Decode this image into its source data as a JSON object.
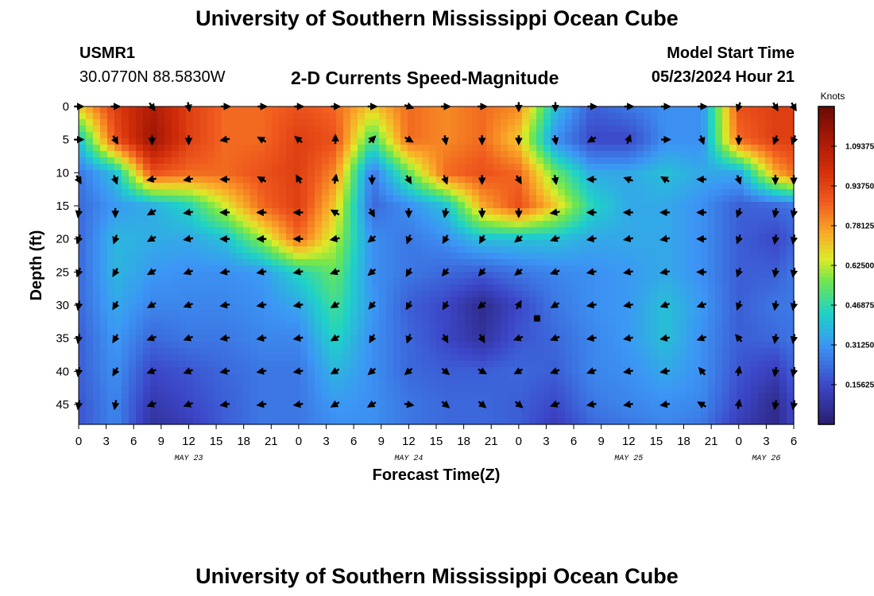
{
  "header": {
    "title": "University of Southern Mississippi Ocean Cube",
    "station_id": "USMR1",
    "coordinates": "30.0770N  88.5830W",
    "plot_title": "2-D Currents Speed-Magnitude",
    "model_start_label": "Model Start Time",
    "model_start_value": "05/23/2024 Hour 21"
  },
  "footer": {
    "title": "University of Southern Mississippi Ocean Cube"
  },
  "chart_data": {
    "type": "heatmap",
    "title": "2-D Currents Speed-Magnitude",
    "xlabel": "Forecast Time(Z)",
    "ylabel": "Depth (ft)",
    "x_ticks": [
      "0",
      "3",
      "6",
      "9",
      "12",
      "15",
      "18",
      "21",
      "0",
      "3",
      "6",
      "9",
      "12",
      "15",
      "18",
      "21",
      "0",
      "3",
      "6",
      "9",
      "12",
      "15",
      "18",
      "21",
      "0",
      "3",
      "6"
    ],
    "x_hours": [
      0,
      3,
      6,
      9,
      12,
      15,
      18,
      21,
      24,
      27,
      30,
      33,
      36,
      39,
      42,
      45,
      48,
      51,
      54,
      57,
      60,
      63,
      66,
      69,
      72,
      75,
      78
    ],
    "xlim_hours": [
      0,
      78
    ],
    "date_labels": [
      {
        "label": "MAY 23",
        "hour": 12
      },
      {
        "label": "MAY 24",
        "hour": 36
      },
      {
        "label": "MAY 25",
        "hour": 60
      },
      {
        "label": "MAY 26",
        "hour": 75
      }
    ],
    "y_ticks": [
      0,
      5,
      10,
      15,
      20,
      25,
      30,
      35,
      40,
      45
    ],
    "ylim": [
      0,
      48
    ],
    "colorbar": {
      "label": "Knots",
      "range": [
        0,
        1.25
      ],
      "tick_values": [
        0.15625,
        0.3125,
        0.46875,
        0.625,
        0.78125,
        0.9375,
        1.09375
      ],
      "tick_labels": [
        "0.15625",
        "0.31250",
        "0.46875",
        "0.62500",
        "0.78125",
        "0.93750",
        "1.09375"
      ]
    },
    "field_time_hours": [
      0,
      4,
      8,
      12,
      16,
      20,
      24,
      28,
      32,
      36,
      40,
      44,
      48,
      52,
      56,
      60,
      64,
      68,
      72,
      76,
      78
    ],
    "field_depth_ft": [
      0,
      5,
      10,
      15,
      20,
      25,
      30,
      35,
      40,
      45,
      48
    ],
    "speed_knots": [
      [
        0.7,
        0.95,
        1.1,
        0.95,
        0.85,
        0.85,
        0.9,
        0.85,
        0.7,
        0.85,
        0.8,
        0.85,
        0.8,
        0.4,
        0.2,
        0.25,
        0.3,
        0.3,
        0.9,
        0.95,
        0.95
      ],
      [
        0.4,
        0.9,
        1.15,
        0.95,
        0.85,
        0.85,
        0.95,
        0.9,
        0.5,
        0.85,
        0.8,
        0.85,
        0.7,
        0.3,
        0.15,
        0.15,
        0.3,
        0.3,
        0.85,
        0.95,
        0.95
      ],
      [
        0.25,
        0.4,
        0.9,
        0.85,
        0.85,
        0.9,
        0.95,
        0.8,
        0.25,
        0.55,
        0.85,
        0.9,
        0.85,
        0.55,
        0.35,
        0.35,
        0.4,
        0.35,
        0.35,
        0.75,
        0.85
      ],
      [
        0.22,
        0.32,
        0.36,
        0.45,
        0.65,
        0.85,
        0.95,
        0.7,
        0.22,
        0.3,
        0.4,
        0.75,
        0.9,
        0.7,
        0.45,
        0.35,
        0.35,
        0.3,
        0.2,
        0.22,
        0.25
      ],
      [
        0.22,
        0.38,
        0.36,
        0.35,
        0.4,
        0.6,
        0.85,
        0.62,
        0.3,
        0.25,
        0.3,
        0.4,
        0.4,
        0.4,
        0.35,
        0.35,
        0.35,
        0.3,
        0.2,
        0.15,
        0.2
      ],
      [
        0.22,
        0.38,
        0.32,
        0.3,
        0.3,
        0.32,
        0.45,
        0.55,
        0.3,
        0.25,
        0.22,
        0.2,
        0.25,
        0.28,
        0.3,
        0.32,
        0.35,
        0.3,
        0.2,
        0.2,
        0.25
      ],
      [
        0.22,
        0.35,
        0.28,
        0.28,
        0.28,
        0.3,
        0.35,
        0.5,
        0.32,
        0.2,
        0.15,
        0.05,
        0.15,
        0.25,
        0.3,
        0.32,
        0.4,
        0.32,
        0.2,
        0.25,
        0.25
      ],
      [
        0.2,
        0.32,
        0.22,
        0.25,
        0.25,
        0.28,
        0.28,
        0.45,
        0.3,
        0.22,
        0.15,
        0.08,
        0.18,
        0.22,
        0.28,
        0.32,
        0.4,
        0.3,
        0.2,
        0.22,
        0.25
      ],
      [
        0.2,
        0.3,
        0.15,
        0.18,
        0.22,
        0.25,
        0.25,
        0.38,
        0.3,
        0.22,
        0.2,
        0.2,
        0.22,
        0.2,
        0.28,
        0.3,
        0.35,
        0.3,
        0.18,
        0.12,
        0.2
      ],
      [
        0.18,
        0.28,
        0.1,
        0.15,
        0.2,
        0.25,
        0.25,
        0.32,
        0.3,
        0.25,
        0.22,
        0.22,
        0.2,
        0.15,
        0.25,
        0.28,
        0.3,
        0.28,
        0.15,
        0.05,
        0.15
      ],
      [
        0.18,
        0.28,
        0.08,
        0.12,
        0.2,
        0.25,
        0.25,
        0.3,
        0.3,
        0.25,
        0.22,
        0.22,
        0.2,
        0.12,
        0.22,
        0.25,
        0.28,
        0.25,
        0.12,
        0.05,
        0.15
      ]
    ],
    "vector_time_hours": [
      0,
      4,
      8,
      12,
      16,
      20,
      24,
      28,
      32,
      36,
      40,
      44,
      48,
      52,
      56,
      60,
      64,
      68,
      72,
      76,
      78
    ],
    "vector_depth_ft": [
      0,
      5,
      11,
      16,
      20,
      25,
      30,
      35,
      40,
      45
    ],
    "vector_direction_deg": [
      [
        90,
        90,
        145,
        170,
        90,
        90,
        90,
        90,
        90,
        110,
        90,
        90,
        180,
        180,
        90,
        90,
        90,
        90,
        200,
        150,
        150
      ],
      [
        90,
        150,
        180,
        180,
        260,
        300,
        310,
        0,
        45,
        120,
        170,
        180,
        180,
        170,
        240,
        20,
        90,
        160,
        180,
        200,
        200
      ],
      [
        150,
        160,
        260,
        260,
        270,
        300,
        330,
        10,
        180,
        150,
        160,
        180,
        150,
        170,
        270,
        290,
        300,
        270,
        160,
        180,
        180
      ],
      [
        190,
        180,
        240,
        260,
        270,
        270,
        270,
        300,
        150,
        180,
        190,
        180,
        180,
        260,
        270,
        270,
        270,
        270,
        200,
        190,
        190
      ],
      [
        200,
        200,
        240,
        260,
        270,
        270,
        270,
        260,
        230,
        200,
        210,
        210,
        230,
        250,
        260,
        260,
        260,
        270,
        200,
        190,
        190
      ],
      [
        200,
        210,
        240,
        250,
        260,
        260,
        260,
        250,
        230,
        210,
        220,
        220,
        230,
        250,
        260,
        260,
        260,
        270,
        200,
        190,
        190
      ],
      [
        190,
        210,
        240,
        250,
        260,
        260,
        260,
        240,
        220,
        210,
        210,
        230,
        30,
        240,
        260,
        260,
        250,
        250,
        200,
        190,
        190
      ],
      [
        190,
        210,
        250,
        250,
        260,
        260,
        260,
        240,
        210,
        200,
        150,
        150,
        250,
        250,
        260,
        260,
        260,
        250,
        320,
        190,
        190
      ],
      [
        190,
        210,
        250,
        250,
        260,
        260,
        260,
        240,
        230,
        230,
        130,
        120,
        240,
        250,
        250,
        260,
        260,
        320,
        10,
        190,
        190
      ],
      [
        190,
        190,
        250,
        250,
        260,
        260,
        260,
        240,
        240,
        100,
        130,
        130,
        130,
        250,
        260,
        260,
        260,
        300,
        10,
        190,
        190
      ]
    ],
    "marker": {
      "hour": 50,
      "depth": 32
    }
  }
}
